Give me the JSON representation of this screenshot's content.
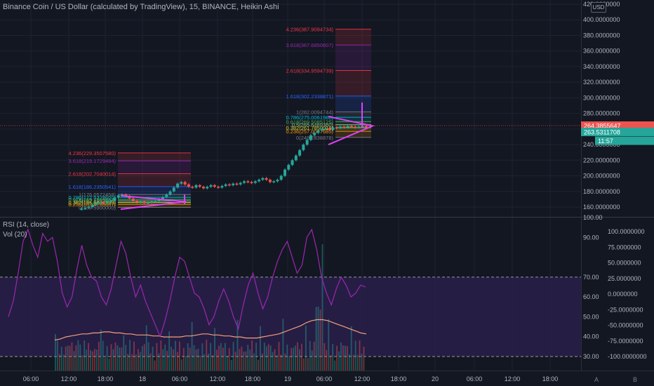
{
  "header": {
    "title": "Binance Coin / US Dollar (calculated by TradingView), 15, BINANCE, Heikin Ashi",
    "currency_badge": "USD"
  },
  "indicators": {
    "rsi_label": "RSI (14, close)",
    "vol_label": "Vol (20)"
  },
  "scale_buttons": {
    "auto": "A",
    "log": "B"
  },
  "colors": {
    "background": "#131722",
    "up": "#26a69a",
    "down": "#ef5350",
    "triangle": "#e040fb",
    "rsi_line": "#9c27b0",
    "volume_ma": "#f5a07a",
    "rsi_band": "#2a1f4a",
    "price_tag_red": "#ef5350",
    "price_tag_green": "#26a69a"
  },
  "chart_data": {
    "type": "candlestick",
    "price_axis": {
      "ticks": [
        "420.0000000",
        "400.0000000",
        "380.0000000",
        "360.0000000",
        "340.0000000",
        "320.0000000",
        "300.0000000",
        "280.0000000",
        "260.0000000",
        "240.0000000",
        "220.0000000",
        "200.0000000",
        "180.0000000",
        "160.0000000"
      ],
      "current_price_labels": [
        {
          "text": "264.3855647",
          "color": "#ef5350"
        },
        {
          "text": "263.5311708",
          "color": "#26a69a"
        },
        {
          "text": "11:57",
          "color": "#26a69a"
        }
      ]
    },
    "time_axis": {
      "ticks": [
        "06:00",
        "12:00",
        "18:00",
        "18",
        "06:00",
        "12:00",
        "18:00",
        "19",
        "06:00",
        "12:00",
        "18:00",
        "20",
        "06:00",
        "12:00",
        "18:00"
      ]
    },
    "rsi_axis": {
      "ticks": [
        "100.00",
        "90.00",
        "70.00",
        "60.00",
        "50.00",
        "40.00",
        "30.00"
      ],
      "overbought": 70,
      "oversold": 30
    },
    "volume_axis": {
      "ticks": [
        "100.0000000",
        "75.0000000",
        "50.0000000",
        "25.0000000",
        "0.0000000",
        "-25.0000000",
        "-50.0000000",
        "-75.0000000",
        "-100.0000000"
      ]
    },
    "fib_sets": [
      {
        "name": "lower",
        "levels": [
          {
            "label": "4.236(229.3507580)",
            "value": 229.35,
            "color": "#f23645"
          },
          {
            "label": "3.618(219.1729484)",
            "value": 219.17,
            "color": "#9c27b0"
          },
          {
            "label": "2.618(202.7040014)",
            "value": 202.7,
            "color": "#f23645"
          },
          {
            "label": "1.618(186.2350541)",
            "value": 186.24,
            "color": "#2962ff"
          },
          {
            "label": "1(176.0572458)",
            "value": 176.06,
            "color": "#787b86"
          },
          {
            "label": "0.786(172.5328600)",
            "value": 172.53,
            "color": "#00bcd4"
          },
          {
            "label": "0.618(169.7666667)",
            "value": 169.77,
            "color": "#4caf50"
          },
          {
            "label": "0.5(167.8237500)",
            "value": 167.82,
            "color": "#81c784"
          },
          {
            "label": "0.382(165.8808333)",
            "value": 165.88,
            "color": "#cddc39"
          },
          {
            "label": "0.236(163.4766667)",
            "value": 163.48,
            "color": "#ff9800"
          },
          {
            "label": "0(159.5900000)",
            "value": 159.59,
            "color": "#787b86"
          }
        ]
      },
      {
        "name": "upper",
        "levels": [
          {
            "label": "4.236(387.9094734)",
            "value": 387.91,
            "color": "#f23645"
          },
          {
            "label": "3.618(367.6850607)",
            "value": 367.69,
            "color": "#9c27b0"
          },
          {
            "label": "2.618(334.9594739)",
            "value": 334.96,
            "color": "#f23645"
          },
          {
            "label": "1.618(302.2338871)",
            "value": 302.23,
            "color": "#2962ff"
          },
          {
            "label": "1(282.0094744)",
            "value": 282.01,
            "color": "#787b86"
          },
          {
            "label": "0.786(275.0061988)",
            "value": 275.01,
            "color": "#00bcd4"
          },
          {
            "label": "0.618(269.5085125)",
            "value": 269.51,
            "color": "#4caf50"
          },
          {
            "label": "0.5(265.6469380)",
            "value": 265.65,
            "color": "#81c784"
          },
          {
            "label": "0.382(261.7850018)",
            "value": 261.79,
            "color": "#cddc39"
          },
          {
            "label": "0.236(257.0077685)",
            "value": 257.01,
            "color": "#ff9800"
          },
          {
            "label": "0(249.2838878)",
            "value": 249.28,
            "color": "#787b86"
          }
        ]
      }
    ],
    "close_series": [
      158,
      159,
      160,
      163,
      165,
      166,
      165,
      167,
      168,
      172,
      175,
      176,
      174,
      171,
      168,
      166,
      167,
      165,
      166,
      167,
      168,
      170,
      173,
      176,
      180,
      185,
      190,
      192,
      189,
      186,
      185,
      188,
      186,
      184,
      186,
      188,
      186,
      185,
      187,
      189,
      188,
      190,
      189,
      191,
      193,
      192,
      191,
      193,
      195,
      197,
      195,
      192,
      193,
      195,
      200,
      208,
      214,
      220,
      226,
      233,
      240,
      246,
      252,
      255,
      258,
      260,
      261,
      259,
      262,
      261,
      263,
      262,
      264,
      263,
      262,
      263,
      264,
      263.5
    ],
    "rsi_series": [
      50,
      58,
      72,
      88,
      94,
      86,
      80,
      92,
      88,
      90,
      78,
      62,
      55,
      60,
      74,
      86,
      76,
      70,
      68,
      60,
      56,
      64,
      76,
      88,
      82,
      70,
      60,
      66,
      58,
      52,
      46,
      40,
      48,
      58,
      70,
      80,
      78,
      70,
      62,
      60,
      54,
      46,
      50,
      58,
      64,
      58,
      50,
      44,
      56,
      66,
      72,
      62,
      54,
      60,
      70,
      78,
      84,
      88,
      80,
      72,
      76,
      90,
      94,
      84,
      70,
      62,
      56,
      64,
      70,
      66,
      60,
      62,
      66,
      65
    ],
    "volume_ma_series": [
      30,
      31,
      33,
      34,
      35,
      36,
      36,
      37,
      37,
      38,
      38,
      37,
      37,
      36,
      36,
      35,
      35,
      35,
      34,
      34,
      33,
      33,
      33,
      33,
      34,
      34,
      35,
      36,
      36,
      35,
      35,
      34,
      34,
      33,
      33,
      32,
      32,
      32,
      33,
      34,
      35,
      36,
      38,
      40,
      42,
      44,
      47,
      49,
      50,
      50,
      49,
      47,
      45,
      43,
      41,
      39,
      37,
      36
    ]
  }
}
